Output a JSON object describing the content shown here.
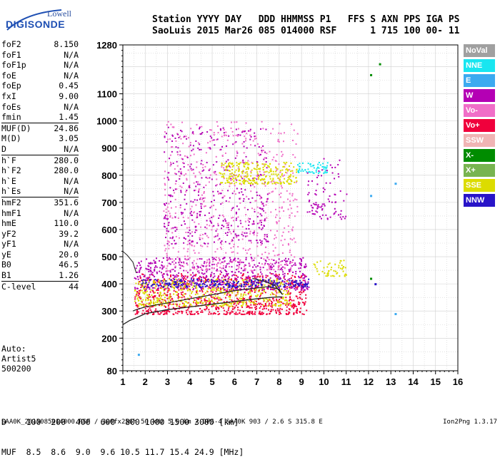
{
  "logo": {
    "top": "Lowell",
    "bottom": "DIGISONDE"
  },
  "header": {
    "line1": "Station YYYY DAY   DDD HHMMSS P1   FFS S AXN PPS IGA PS",
    "line2": "SaoLuis 2015 Mar26 085 014000 RSF      1 715 100 00- 11"
  },
  "params": [
    {
      "k": "foF2",
      "v": "8.150"
    },
    {
      "k": "foF1",
      "v": "N/A"
    },
    {
      "k": "foF1p",
      "v": "N/A"
    },
    {
      "k": "foE",
      "v": "N/A"
    },
    {
      "k": "foEp",
      "v": "0.45"
    },
    {
      "k": "fxI",
      "v": "9.00"
    },
    {
      "k": "foEs",
      "v": "N/A"
    },
    {
      "k": "fmin",
      "v": "1.45"
    },
    {
      "k": "MUF(D)",
      "v": "24.86"
    },
    {
      "k": "M(D)",
      "v": "3.05"
    },
    {
      "k": "D",
      "v": "N/A"
    },
    {
      "k": "h`F",
      "v": "280.0"
    },
    {
      "k": "h`F2",
      "v": "280.0"
    },
    {
      "k": "h`E",
      "v": "N/A"
    },
    {
      "k": "h`Es",
      "v": "N/A"
    },
    {
      "k": "hmF2",
      "v": "351.6"
    },
    {
      "k": "hmF1",
      "v": "N/A"
    },
    {
      "k": "hmE",
      "v": "110.0"
    },
    {
      "k": "yF2",
      "v": "39.2"
    },
    {
      "k": "yF1",
      "v": "N/A"
    },
    {
      "k": "yE",
      "v": "20.0"
    },
    {
      "k": "B0",
      "v": "46.5"
    },
    {
      "k": "B1",
      "v": "1.26"
    },
    {
      "k": "C-level",
      "v": "44"
    }
  ],
  "auto": {
    "l1": "Auto:",
    "l2": "Artist5",
    "l3": "500200"
  },
  "legend": [
    {
      "label": "NoVal",
      "color": "#a0a0a0"
    },
    {
      "label": "NNE",
      "color": "#19e6f0"
    },
    {
      "label": "E",
      "color": "#3caaf0"
    },
    {
      "label": "W",
      "color": "#b400b4"
    },
    {
      "label": "Vo-",
      "color": "#f06ec8"
    },
    {
      "label": "Vo+",
      "color": "#f0003c"
    },
    {
      "label": "SSW",
      "color": "#f0b4b4"
    },
    {
      "label": "X-",
      "color": "#008c00"
    },
    {
      "label": "X+",
      "color": "#78b450"
    },
    {
      "label": "SSE",
      "color": "#dcdc00"
    },
    {
      "label": "NNW",
      "color": "#2814c8"
    }
  ],
  "dmuf": {
    "d_line": "D    100  200  400  600  800 1000 1500 3000 [km]",
    "muf_line": "MUF  8.5  8.6  9.0  9.6 10.5 11.7 15.4 24.9 [MHz]"
  },
  "footer": "SAA0K_2015085014000.RSF / 300fx256h 50 kHz 5.0 km / DPS-4 SAA0K 903 / 2.6 S 315.8 E",
  "version": "Ion2Png 1.3.17",
  "chart_data": {
    "type": "scatter",
    "xlim": [
      1,
      16
    ],
    "ylim": [
      80,
      1280
    ],
    "x_ticks": [
      "1",
      "2",
      "3",
      "4",
      "5",
      "6",
      "7",
      "8",
      "9",
      "10",
      "11",
      "12",
      "13",
      "14",
      "15",
      "16"
    ],
    "y_ticks": [
      "80",
      "200",
      "300",
      "400",
      "500",
      "600",
      "700",
      "800",
      "900",
      "1000",
      "1100",
      "1280"
    ],
    "grid": true,
    "profile_curve": {
      "x": [
        1.0,
        1.3,
        1.6,
        2.0,
        3.0,
        4.0,
        5.0,
        6.0,
        7.0,
        7.6,
        8.0,
        8.15
      ],
      "y": [
        250,
        265,
        275,
        290,
        305,
        315,
        325,
        335,
        345,
        350,
        352,
        351.6
      ]
    },
    "trace_curve": {
      "x": [
        1.45,
        1.6,
        2.0,
        3.0,
        4.0,
        5.0,
        6.0,
        7.0,
        7.5,
        8.0,
        8.15,
        7.8,
        7.3,
        6.8
      ],
      "y": [
        300,
        305,
        315,
        330,
        345,
        360,
        375,
        385,
        390,
        380,
        360,
        395,
        410,
        420
      ]
    },
    "upper_curve": {
      "x": [
        1.0,
        1.2,
        1.45,
        1.6
      ],
      "y": [
        520,
        505,
        480,
        440
      ]
    },
    "clusters": [
      {
        "series": "Vo+",
        "x": [
          1.5,
          9.2
        ],
        "y": [
          290,
          440
        ],
        "n": 900
      },
      {
        "series": "W",
        "x": [
          1.5,
          9.3
        ],
        "y": [
          380,
          500
        ],
        "n": 600
      },
      {
        "series": "SSE",
        "x": [
          1.5,
          8.5
        ],
        "y": [
          320,
          420
        ],
        "n": 500
      },
      {
        "series": "Vo-",
        "x": [
          2.8,
          8.8
        ],
        "y": [
          450,
          1000
        ],
        "n": 650
      },
      {
        "series": "W",
        "x": [
          2.8,
          7.5
        ],
        "y": [
          550,
          980
        ],
        "n": 400
      },
      {
        "series": "SSE",
        "x": [
          5.3,
          8.8
        ],
        "y": [
          770,
          850
        ],
        "n": 260
      },
      {
        "series": "NNE",
        "x": [
          8.8,
          10.2
        ],
        "y": [
          810,
          850
        ],
        "n": 60
      },
      {
        "series": "W",
        "x": [
          9.2,
          11.0
        ],
        "y": [
          640,
          870
        ],
        "n": 90
      },
      {
        "series": "SSE",
        "x": [
          9.5,
          11.0
        ],
        "y": [
          430,
          490
        ],
        "n": 50
      },
      {
        "series": "NNW",
        "x": [
          1.8,
          9.3
        ],
        "y": [
          390,
          420
        ],
        "n": 250
      }
    ],
    "isolated_points": [
      {
        "series": "X-",
        "x": 12.5,
        "y": 1210
      },
      {
        "series": "X-",
        "x": 12.1,
        "y": 1170
      },
      {
        "series": "E",
        "x": 12.1,
        "y": 725
      },
      {
        "series": "E",
        "x": 13.2,
        "y": 770
      },
      {
        "series": "E",
        "x": 13.2,
        "y": 290
      },
      {
        "series": "NNW",
        "x": 12.3,
        "y": 400
      },
      {
        "series": "X-",
        "x": 12.1,
        "y": 420
      },
      {
        "series": "E",
        "x": 1.7,
        "y": 140
      }
    ]
  }
}
